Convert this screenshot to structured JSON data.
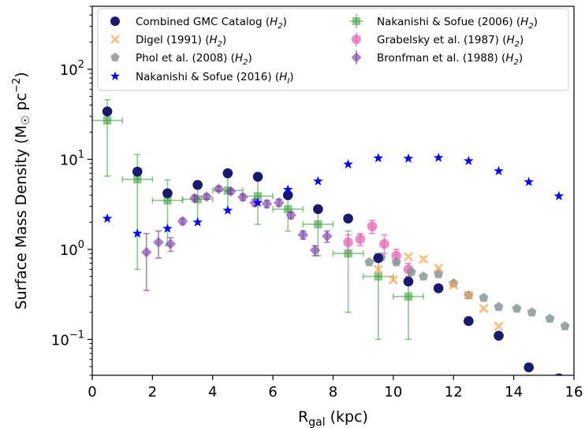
{
  "chart_data": {
    "type": "scatter",
    "title": "",
    "xlabel": {
      "base": "R",
      "sub": "gal",
      "tail": " (kpc)"
    },
    "ylabel": {
      "head": "Surface Mass Density (M",
      "sun": "☉",
      "mid": " pc",
      "sup": "−2",
      "tail": ")"
    },
    "x_range": [
      0,
      16
    ],
    "y_range": [
      0.04,
      500
    ],
    "y_scale": "log",
    "x_ticks": [
      {
        "v": 0,
        "label": "0"
      },
      {
        "v": 2,
        "label": "2"
      },
      {
        "v": 4,
        "label": "4"
      },
      {
        "v": 6,
        "label": "6"
      },
      {
        "v": 8,
        "label": "8"
      },
      {
        "v": 10,
        "label": "10"
      },
      {
        "v": 12,
        "label": "12"
      },
      {
        "v": 14,
        "label": "14"
      },
      {
        "v": 16,
        "label": "16"
      }
    ],
    "y_ticks": [
      {
        "v": 0.1,
        "base": "10",
        "exp": "−1"
      },
      {
        "v": 1,
        "base": "10",
        "exp": "0"
      },
      {
        "v": 10,
        "base": "10",
        "exp": "1"
      },
      {
        "v": 100,
        "base": "10",
        "exp": "2"
      }
    ],
    "legend_position": "top",
    "series": [
      {
        "name": "Combined GMC Catalog (H2)",
        "legend": {
          "text": "Combined GMC Catalog (",
          "sym": "H",
          "sub": "2",
          "tail": ")"
        },
        "marker": "circle",
        "color": "#191970",
        "opacity": 1,
        "points": [
          {
            "x": 0.5,
            "y": 34
          },
          {
            "x": 1.5,
            "y": 7.3
          },
          {
            "x": 2.5,
            "y": 4.2
          },
          {
            "x": 3.5,
            "y": 5.2
          },
          {
            "x": 4.5,
            "y": 7.0
          },
          {
            "x": 5.5,
            "y": 6.4
          },
          {
            "x": 6.5,
            "y": 4.0
          },
          {
            "x": 7.5,
            "y": 2.8
          },
          {
            "x": 8.5,
            "y": 2.2
          },
          {
            "x": 9.5,
            "y": 0.8
          },
          {
            "x": 10.5,
            "y": 0.44
          },
          {
            "x": 11.5,
            "y": 0.37
          },
          {
            "x": 12.5,
            "y": 0.16
          },
          {
            "x": 13.5,
            "y": 0.11
          },
          {
            "x": 14.5,
            "y": 0.049
          },
          {
            "x": 15.5,
            "y": 0.037
          }
        ]
      },
      {
        "name": "Digel (1991) (H2)",
        "legend": {
          "text": "Digel (1991) (",
          "sym": "H",
          "sub": "2",
          "tail": ")"
        },
        "marker": "x",
        "color": "#ffa54f",
        "opacity": 0.75,
        "points": [
          {
            "x": 9.5,
            "y": 0.6
          },
          {
            "x": 10.0,
            "y": 0.46
          },
          {
            "x": 10.5,
            "y": 0.83
          },
          {
            "x": 11.0,
            "y": 0.78
          },
          {
            "x": 11.5,
            "y": 0.62
          },
          {
            "x": 12.0,
            "y": 0.4
          },
          {
            "x": 12.5,
            "y": 0.31
          },
          {
            "x": 13.0,
            "y": 0.22
          },
          {
            "x": 13.5,
            "y": 0.14
          }
        ]
      },
      {
        "name": "Phol et al. (2008) (H2)",
        "legend": {
          "text": "Phol et al. (2008) (",
          "sym": "H",
          "sub": "2",
          "tail": ")"
        },
        "marker": "pentagon",
        "color": "#7f9090",
        "opacity": 0.8,
        "points": [
          {
            "x": 9.2,
            "y": 0.72
          },
          {
            "x": 9.6,
            "y": 0.82
          },
          {
            "x": 10.1,
            "y": 0.72
          },
          {
            "x": 10.6,
            "y": 0.56
          },
          {
            "x": 11.0,
            "y": 0.5
          },
          {
            "x": 11.5,
            "y": 0.53
          },
          {
            "x": 12.0,
            "y": 0.42
          },
          {
            "x": 12.5,
            "y": 0.31
          },
          {
            "x": 13.0,
            "y": 0.29
          },
          {
            "x": 13.5,
            "y": 0.23
          },
          {
            "x": 14.1,
            "y": 0.22
          },
          {
            "x": 14.6,
            "y": 0.2
          },
          {
            "x": 15.2,
            "y": 0.17
          },
          {
            "x": 15.7,
            "y": 0.14
          }
        ]
      },
      {
        "name": "Nakanishi & Sofue (2016) (HI)",
        "legend": {
          "text": "Nakanishi & Sofue (2016) (",
          "sym": "H",
          "sub": "I",
          "tail": ")"
        },
        "marker": "star",
        "color": "#0000ff",
        "opacity": 1,
        "points": [
          {
            "x": 0.5,
            "y": 2.2
          },
          {
            "x": 1.5,
            "y": 1.5
          },
          {
            "x": 2.5,
            "y": 1.7
          },
          {
            "x": 3.5,
            "y": 2.0
          },
          {
            "x": 4.5,
            "y": 2.7
          },
          {
            "x": 5.5,
            "y": 3.3
          },
          {
            "x": 6.5,
            "y": 4.6
          },
          {
            "x": 7.5,
            "y": 5.7
          },
          {
            "x": 8.5,
            "y": 8.8
          },
          {
            "x": 9.5,
            "y": 10.3
          },
          {
            "x": 10.5,
            "y": 10.2
          },
          {
            "x": 11.5,
            "y": 10.4
          },
          {
            "x": 12.5,
            "y": 9.6
          },
          {
            "x": 13.5,
            "y": 7.4
          },
          {
            "x": 14.5,
            "y": 5.6
          },
          {
            "x": 15.5,
            "y": 3.9
          }
        ]
      },
      {
        "name": "Nakanishi & Sofue (2006) (H2)",
        "legend": {
          "text": "Nakanishi & Sofue (2006) (",
          "sym": "H",
          "sub": "2",
          "tail": ")"
        },
        "marker": "square",
        "color": "#2e9b2e",
        "opacity": 0.55,
        "points": [
          {
            "x": 0.5,
            "y": 27,
            "xerr": 0.5,
            "ylo": 6.5,
            "yhi": 46
          },
          {
            "x": 1.5,
            "y": 6.0,
            "xerr": 0.5,
            "ylo": 0.6,
            "yhi": 11.3
          },
          {
            "x": 2.5,
            "y": 3.5,
            "xerr": 0.5,
            "ylo": 1.1,
            "yhi": 5.9
          },
          {
            "x": 3.5,
            "y": 3.6,
            "xerr": 0.5,
            "ylo": 1.9,
            "yhi": 5.4
          },
          {
            "x": 4.5,
            "y": 4.5,
            "xerr": 0.5,
            "ylo": 2.7,
            "yhi": 6.3
          },
          {
            "x": 5.5,
            "y": 3.9,
            "xerr": 0.5,
            "ylo": 1.9,
            "yhi": 5.9
          },
          {
            "x": 6.5,
            "y": 2.8,
            "xerr": 0.5,
            "ylo": 1.6,
            "yhi": 4.0
          },
          {
            "x": 7.5,
            "y": 1.9,
            "xerr": 0.5,
            "ylo": 0.85,
            "yhi": 2.9
          },
          {
            "x": 8.5,
            "y": 0.9,
            "xerr": 0.5,
            "ylo": 0.2,
            "yhi": 1.6
          },
          {
            "x": 9.5,
            "y": 0.5,
            "xerr": 0.5,
            "ylo": 0.1,
            "yhi": 0.9
          },
          {
            "x": 10.5,
            "y": 0.3,
            "xerr": 0.5,
            "ylo": 0.1,
            "yhi": 0.5
          }
        ]
      },
      {
        "name": "Grabelsky et al. (1987) (H2)",
        "legend": {
          "text": "Grabelsky et al. (1987) (",
          "sym": "H",
          "sub": "2",
          "tail": ")"
        },
        "marker": "circle",
        "color": "#e75bb4",
        "opacity": 0.7,
        "points": [
          {
            "x": 8.5,
            "y": 1.2,
            "ylo": 0.95,
            "yhi": 1.45
          },
          {
            "x": 8.9,
            "y": 1.3,
            "ylo": 1.1,
            "yhi": 1.5
          },
          {
            "x": 9.3,
            "y": 1.8,
            "ylo": 1.5,
            "yhi": 2.1
          },
          {
            "x": 9.7,
            "y": 1.15,
            "ylo": 0.9,
            "yhi": 1.45
          },
          {
            "x": 10.1,
            "y": 0.85,
            "ylo": 0.7,
            "yhi": 1.0
          },
          {
            "x": 10.5,
            "y": 0.6,
            "ylo": 0.5,
            "yhi": 0.7
          }
        ]
      },
      {
        "name": "Bronfman et al. (1988) (H2)",
        "legend": {
          "text": "Bronfman et al.  (1988) (",
          "sym": "H",
          "sub": "2",
          "tail": ")"
        },
        "marker": "diamond",
        "color": "#7b3fa8",
        "opacity": 0.65,
        "points": [
          {
            "x": 1.8,
            "y": 0.93,
            "ylo": 0.35,
            "yhi": 1.5
          },
          {
            "x": 2.2,
            "y": 1.2,
            "ylo": 0.8,
            "yhi": 1.6
          },
          {
            "x": 2.6,
            "y": 1.15,
            "ylo": 0.95,
            "yhi": 1.35
          },
          {
            "x": 3.0,
            "y": 2.05,
            "ylo": 1.9,
            "yhi": 2.2
          },
          {
            "x": 3.4,
            "y": 3.7,
            "ylo": 3.4,
            "yhi": 4.0
          },
          {
            "x": 3.8,
            "y": 3.85,
            "ylo": 3.6,
            "yhi": 4.1
          },
          {
            "x": 4.2,
            "y": 4.7,
            "ylo": 4.4,
            "yhi": 5.0
          },
          {
            "x": 4.6,
            "y": 4.4,
            "ylo": 4.1,
            "yhi": 4.7
          },
          {
            "x": 5.0,
            "y": 3.8,
            "ylo": 3.5,
            "yhi": 4.1
          },
          {
            "x": 5.4,
            "y": 3.3,
            "ylo": 3.0,
            "yhi": 3.6
          },
          {
            "x": 5.8,
            "y": 3.2,
            "ylo": 2.9,
            "yhi": 3.5
          },
          {
            "x": 6.2,
            "y": 3.3,
            "ylo": 3.0,
            "yhi": 3.6
          },
          {
            "x": 6.6,
            "y": 2.4,
            "ylo": 2.2,
            "yhi": 2.6
          },
          {
            "x": 7.0,
            "y": 1.45,
            "ylo": 1.3,
            "yhi": 1.6
          },
          {
            "x": 7.4,
            "y": 0.98,
            "ylo": 0.85,
            "yhi": 1.1
          },
          {
            "x": 7.8,
            "y": 1.4,
            "ylo": 1.2,
            "yhi": 1.6
          }
        ]
      }
    ]
  }
}
